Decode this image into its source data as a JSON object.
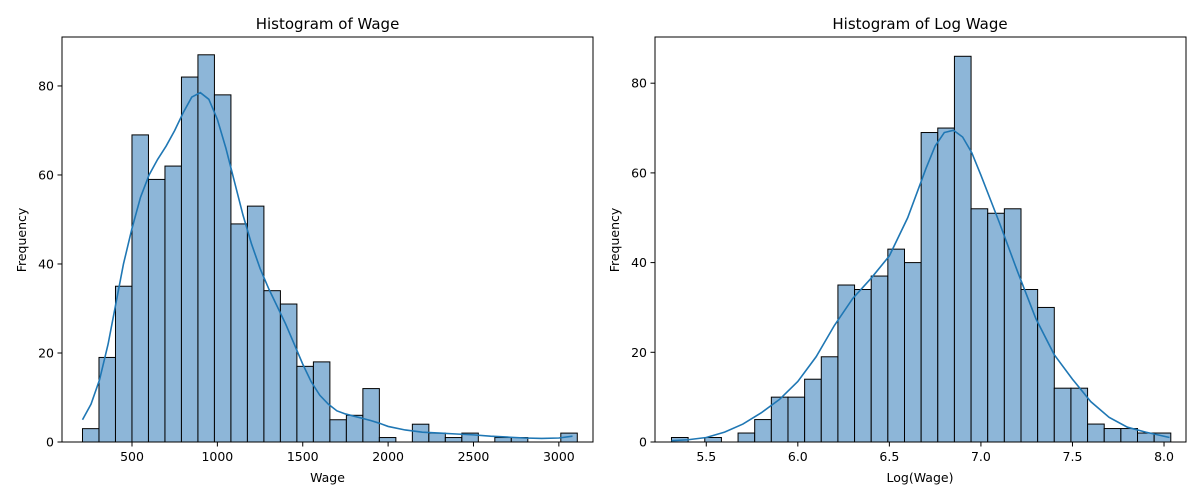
{
  "chart_data": [
    {
      "type": "histogram",
      "title": "Histogram of Wage",
      "xlabel": "Wage",
      "ylabel": "Frequency",
      "xlim": [
        90,
        3200
      ],
      "ylim": [
        0,
        91
      ],
      "xticks": [
        500,
        1000,
        1500,
        2000,
        2500,
        3000
      ],
      "yticks": [
        0,
        20,
        40,
        60,
        80
      ],
      "grid": false,
      "bin_start": 210,
      "bin_width": 96.6,
      "counts": [
        3,
        19,
        35,
        69,
        59,
        62,
        82,
        87,
        78,
        49,
        53,
        34,
        31,
        17,
        18,
        5,
        6,
        12,
        1,
        0,
        4,
        2,
        1,
        2,
        0,
        1,
        1,
        0,
        0,
        2
      ],
      "kde": {
        "x": [
          210,
          260,
          310,
          360,
          400,
          450,
          500,
          550,
          600,
          650,
          700,
          750,
          800,
          850,
          900,
          950,
          1000,
          1050,
          1100,
          1150,
          1200,
          1250,
          1300,
          1350,
          1400,
          1450,
          1500,
          1550,
          1600,
          1650,
          1700,
          1750,
          1800,
          1850,
          1900,
          1950,
          2000,
          2100,
          2200,
          2300,
          2400,
          2500,
          2600,
          2700,
          2800,
          2900,
          3000,
          3080
        ],
        "y": [
          5,
          8.5,
          14,
          22,
          30,
          40,
          48,
          55,
          60,
          63.5,
          66.5,
          70,
          74,
          77.5,
          78.5,
          77,
          72.5,
          66,
          58.5,
          51,
          44.5,
          39,
          34.5,
          30.5,
          26.5,
          22,
          17.5,
          13.5,
          10.5,
          8.5,
          7,
          6.3,
          5.8,
          5.3,
          4.8,
          4.2,
          3.5,
          2.7,
          2.2,
          2.0,
          1.8,
          1.6,
          1.3,
          1.1,
          0.9,
          0.8,
          0.9,
          1.3
        ]
      }
    },
    {
      "type": "histogram",
      "title": "Histogram of Log Wage",
      "xlabel": "Log(Wage)",
      "ylabel": "Frequency",
      "xlim": [
        5.22,
        8.12
      ],
      "ylim": [
        0,
        90.3
      ],
      "xticks": [
        5.5,
        6.0,
        6.5,
        7.0,
        7.5,
        8.0
      ],
      "yticks": [
        0,
        20,
        40,
        60,
        80
      ],
      "grid": false,
      "bin_start": 5.31,
      "bin_width": 0.0909,
      "counts": [
        1,
        0,
        1,
        0,
        2,
        5,
        10,
        10,
        14,
        19,
        35,
        34,
        37,
        43,
        40,
        69,
        70,
        86,
        52,
        51,
        52,
        34,
        30,
        12,
        12,
        4,
        3,
        3,
        2,
        2
      ],
      "kde": {
        "x": [
          5.31,
          5.4,
          5.5,
          5.6,
          5.7,
          5.8,
          5.9,
          6.0,
          6.1,
          6.2,
          6.3,
          6.4,
          6.5,
          6.6,
          6.7,
          6.75,
          6.8,
          6.85,
          6.9,
          6.95,
          7.0,
          7.1,
          7.2,
          7.3,
          7.4,
          7.5,
          7.6,
          7.7,
          7.8,
          7.9,
          8.03
        ],
        "y": [
          0.3,
          0.5,
          1.0,
          2.2,
          4.0,
          6.5,
          9.5,
          13.5,
          19.0,
          26.0,
          32.0,
          36.5,
          41.5,
          50.0,
          61.0,
          66.0,
          69.0,
          69.5,
          68.0,
          64.5,
          59.5,
          49.0,
          38.0,
          27.5,
          19.5,
          14.0,
          9.0,
          5.5,
          3.3,
          2.2,
          1.0
        ]
      }
    }
  ]
}
